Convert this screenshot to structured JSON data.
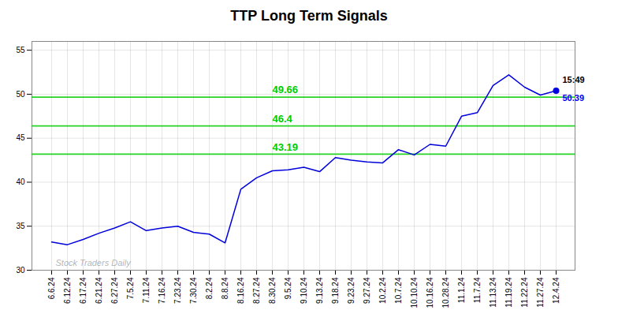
{
  "chart_data": {
    "type": "line",
    "title": "TTP Long Term Signals",
    "categories": [
      "6.6.24",
      "6.12.24",
      "6.17.24",
      "6.21.24",
      "6.27.24",
      "7.5.24",
      "7.11.24",
      "7.16.24",
      "7.23.24",
      "7.30.24",
      "8.2.24",
      "8.8.24",
      "8.16.24",
      "8.27.24",
      "8.30.24",
      "9.5.24",
      "9.10.24",
      "9.13.24",
      "9.18.24",
      "9.23.24",
      "9.27.24",
      "10.2.24",
      "10.7.24",
      "10.10.24",
      "10.16.24",
      "10.28.24",
      "11.1.24",
      "11.7.24",
      "11.13.24",
      "11.19.24",
      "11.22.24",
      "11.27.24",
      "12.4.24"
    ],
    "values": [
      33.2,
      32.9,
      33.5,
      34.2,
      34.8,
      35.5,
      34.5,
      34.8,
      35.0,
      34.3,
      34.1,
      33.1,
      39.2,
      40.5,
      41.3,
      41.4,
      41.7,
      41.2,
      42.8,
      42.5,
      42.3,
      42.2,
      43.7,
      43.1,
      44.3,
      44.1,
      47.5,
      47.9,
      51.0,
      52.2,
      50.8,
      49.9,
      50.39
    ],
    "color": "#0000dd",
    "ylim": [
      30,
      56
    ],
    "yticks": [
      30,
      35,
      40,
      45,
      50,
      55
    ],
    "grid": true,
    "hlines": [
      {
        "y": 43.19,
        "label": "43.19",
        "color": "#00cc00"
      },
      {
        "y": 46.4,
        "label": "46.4",
        "color": "#00cc00"
      },
      {
        "y": 49.66,
        "label": "49.66",
        "color": "#00cc00"
      }
    ],
    "annotations": [
      {
        "text": "15:49",
        "color": "black"
      },
      {
        "text": "50.39",
        "color": "blue"
      }
    ],
    "watermark": "Stock Traders Daily"
  }
}
